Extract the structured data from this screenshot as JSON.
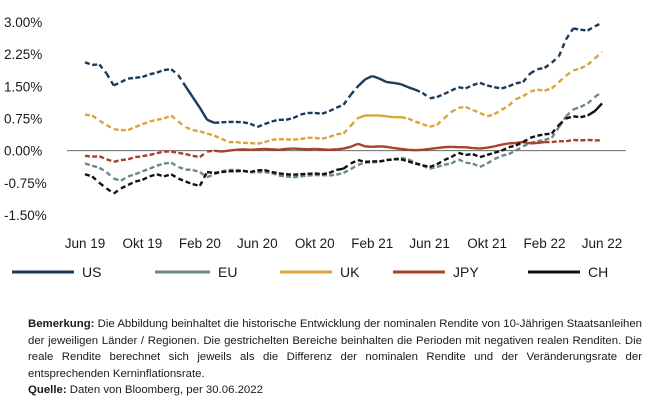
{
  "chart_data": {
    "type": "line",
    "title": "",
    "xlabel": "",
    "ylabel": "",
    "ylim": [
      -1.5,
      3.0
    ],
    "y_ticks": [
      "3.00%",
      "2.25%",
      "1.50%",
      "0.75%",
      "0.00%",
      "-0.75%",
      "-1.50%"
    ],
    "y_tick_values": [
      3.0,
      2.25,
      1.5,
      0.75,
      0.0,
      -0.75,
      -1.5
    ],
    "x_ticks": [
      "Jun 19",
      "Okt 19",
      "Feb 20",
      "Jun 20",
      "Okt 20",
      "Feb 21",
      "Jun 21",
      "Okt 21",
      "Feb 22",
      "Jun 22"
    ],
    "x_tick_values": [
      0,
      4,
      8,
      12,
      16,
      20,
      24,
      28,
      32,
      36
    ],
    "legend_position": "bottom",
    "grid": false,
    "zero_line": true,
    "dashed_region_note": "dashed segments = periods with negative real yields",
    "series": [
      {
        "name": "US",
        "color": "#1a3a5c",
        "x": [
          0,
          0.5,
          1,
          1.5,
          2,
          2.5,
          3,
          3.5,
          4,
          4.5,
          5,
          5.5,
          6,
          6.5,
          7,
          7.5,
          8,
          8.5,
          9,
          9.5,
          10,
          10.5,
          11,
          11.5,
          12,
          12.5,
          13,
          13.5,
          14,
          14.5,
          15,
          15.5,
          16,
          16.5,
          17,
          17.5,
          18,
          18.5,
          19,
          19.5,
          20,
          20.5,
          21,
          21.5,
          22,
          22.5,
          23,
          23.5,
          24,
          24.5,
          25,
          25.5,
          26,
          26.5,
          27,
          27.5,
          28,
          28.5,
          29,
          29.5,
          30,
          30.5,
          31,
          31.5,
          32,
          32.5,
          33,
          33.5,
          34,
          34.5,
          35,
          35.5,
          36
        ],
        "values": [
          2.06,
          2.0,
          2.01,
          1.8,
          1.52,
          1.6,
          1.68,
          1.7,
          1.72,
          1.78,
          1.82,
          1.88,
          1.9,
          1.76,
          1.5,
          1.25,
          1.0,
          0.72,
          0.65,
          0.66,
          0.67,
          0.67,
          0.66,
          0.63,
          0.55,
          0.62,
          0.68,
          0.72,
          0.72,
          0.76,
          0.84,
          0.88,
          0.88,
          0.86,
          0.92,
          1.0,
          1.07,
          1.3,
          1.5,
          1.66,
          1.74,
          1.68,
          1.6,
          1.58,
          1.55,
          1.48,
          1.42,
          1.35,
          1.22,
          1.25,
          1.32,
          1.4,
          1.48,
          1.45,
          1.53,
          1.58,
          1.52,
          1.48,
          1.45,
          1.5,
          1.57,
          1.6,
          1.8,
          1.9,
          1.93,
          2.05,
          2.2,
          2.6,
          2.85,
          2.82,
          2.8,
          2.9,
          2.98
        ]
      },
      {
        "name": "EU",
        "color": "#6e8a80",
        "x": [
          0,
          0.5,
          1,
          1.5,
          2,
          2.5,
          3,
          3.5,
          4,
          4.5,
          5,
          5.5,
          6,
          6.5,
          7,
          7.5,
          8,
          8.5,
          9,
          9.5,
          10,
          10.5,
          11,
          11.5,
          12,
          12.5,
          13,
          13.5,
          14,
          14.5,
          15,
          15.5,
          16,
          16.5,
          17,
          17.5,
          18,
          18.5,
          19,
          19.5,
          20,
          20.5,
          21,
          21.5,
          22,
          22.5,
          23,
          23.5,
          24,
          24.5,
          25,
          25.5,
          26,
          26.5,
          27,
          27.5,
          28,
          28.5,
          29,
          29.5,
          30,
          30.5,
          31,
          31.5,
          32,
          32.5,
          33,
          33.5,
          34,
          34.5,
          35,
          35.5,
          36
        ],
        "values": [
          -0.3,
          -0.35,
          -0.4,
          -0.5,
          -0.65,
          -0.7,
          -0.6,
          -0.55,
          -0.48,
          -0.42,
          -0.35,
          -0.3,
          -0.28,
          -0.38,
          -0.44,
          -0.45,
          -0.5,
          -0.62,
          -0.55,
          -0.48,
          -0.45,
          -0.45,
          -0.47,
          -0.5,
          -0.5,
          -0.5,
          -0.52,
          -0.58,
          -0.6,
          -0.62,
          -0.6,
          -0.58,
          -0.57,
          -0.57,
          -0.58,
          -0.56,
          -0.52,
          -0.43,
          -0.33,
          -0.28,
          -0.27,
          -0.26,
          -0.22,
          -0.2,
          -0.17,
          -0.2,
          -0.28,
          -0.35,
          -0.42,
          -0.38,
          -0.33,
          -0.3,
          -0.2,
          -0.28,
          -0.3,
          -0.38,
          -0.3,
          -0.2,
          -0.12,
          -0.08,
          0.0,
          0.1,
          0.18,
          0.22,
          0.25,
          0.3,
          0.55,
          0.8,
          0.96,
          1.02,
          1.1,
          1.25,
          1.37
        ]
      },
      {
        "name": "UK",
        "color": "#d9a43a",
        "x": [
          0,
          0.5,
          1,
          1.5,
          2,
          2.5,
          3,
          3.5,
          4,
          4.5,
          5,
          5.5,
          6,
          6.5,
          7,
          7.5,
          8,
          8.5,
          9,
          9.5,
          10,
          10.5,
          11,
          11.5,
          12,
          12.5,
          13,
          13.5,
          14,
          14.5,
          15,
          15.5,
          16,
          16.5,
          17,
          17.5,
          18,
          18.5,
          19,
          19.5,
          20,
          20.5,
          21,
          21.5,
          22,
          22.5,
          23,
          23.5,
          24,
          24.5,
          25,
          25.5,
          26,
          26.5,
          27,
          27.5,
          28,
          28.5,
          29,
          29.5,
          30,
          30.5,
          31,
          31.5,
          32,
          32.5,
          33,
          33.5,
          34,
          34.5,
          35,
          35.5,
          36
        ],
        "values": [
          0.84,
          0.82,
          0.7,
          0.6,
          0.5,
          0.48,
          0.48,
          0.55,
          0.62,
          0.68,
          0.72,
          0.75,
          0.82,
          0.68,
          0.55,
          0.48,
          0.45,
          0.4,
          0.35,
          0.28,
          0.2,
          0.2,
          0.18,
          0.18,
          0.16,
          0.2,
          0.25,
          0.27,
          0.26,
          0.26,
          0.27,
          0.3,
          0.3,
          0.28,
          0.32,
          0.38,
          0.4,
          0.58,
          0.76,
          0.82,
          0.82,
          0.82,
          0.8,
          0.78,
          0.78,
          0.75,
          0.68,
          0.62,
          0.56,
          0.6,
          0.75,
          0.9,
          1.0,
          1.02,
          0.95,
          0.88,
          0.8,
          0.85,
          0.95,
          1.05,
          1.2,
          1.27,
          1.38,
          1.42,
          1.4,
          1.45,
          1.6,
          1.75,
          1.87,
          1.92,
          2.0,
          2.15,
          2.3
        ]
      },
      {
        "name": "JPY",
        "color": "#a8402a",
        "x": [
          0,
          0.5,
          1,
          1.5,
          2,
          2.5,
          3,
          3.5,
          4,
          4.5,
          5,
          5.5,
          6,
          6.5,
          7,
          7.5,
          8,
          8.5,
          9,
          9.5,
          10,
          10.5,
          11,
          11.5,
          12,
          12.5,
          13,
          13.5,
          14,
          14.5,
          15,
          15.5,
          16,
          16.5,
          17,
          17.5,
          18,
          18.5,
          19,
          19.5,
          20,
          20.5,
          21,
          21.5,
          22,
          22.5,
          23,
          23.5,
          24,
          24.5,
          25,
          25.5,
          26,
          26.5,
          27,
          27.5,
          28,
          28.5,
          29,
          29.5,
          30,
          30.5,
          31,
          31.5,
          32,
          32.5,
          33,
          33.5,
          34,
          34.5,
          35,
          35.5,
          36
        ],
        "values": [
          -0.12,
          -0.14,
          -0.13,
          -0.2,
          -0.26,
          -0.22,
          -0.2,
          -0.15,
          -0.13,
          -0.1,
          -0.06,
          -0.02,
          -0.02,
          -0.05,
          -0.08,
          -0.12,
          -0.15,
          -0.02,
          0.0,
          -0.02,
          0.0,
          0.02,
          0.03,
          0.02,
          0.03,
          0.04,
          0.03,
          0.02,
          0.04,
          0.05,
          0.04,
          0.03,
          0.04,
          0.03,
          0.02,
          0.03,
          0.05,
          0.09,
          0.16,
          0.1,
          0.09,
          0.1,
          0.09,
          0.06,
          0.04,
          0.02,
          0.01,
          0.02,
          0.04,
          0.06,
          0.08,
          0.09,
          0.08,
          0.08,
          0.06,
          0.05,
          0.07,
          0.1,
          0.14,
          0.17,
          0.18,
          0.2,
          0.17,
          0.18,
          0.2,
          0.2,
          0.22,
          0.22,
          0.25,
          0.24,
          0.25,
          0.24,
          0.24
        ]
      },
      {
        "name": "CH",
        "color": "#111111",
        "x": [
          0,
          0.5,
          1,
          1.5,
          2,
          2.5,
          3,
          3.5,
          4,
          4.5,
          5,
          5.5,
          6,
          6.5,
          7,
          7.5,
          8,
          8.5,
          9,
          9.5,
          10,
          10.5,
          11,
          11.5,
          12,
          12.5,
          13,
          13.5,
          14,
          14.5,
          15,
          15.5,
          16,
          16.5,
          17,
          17.5,
          18,
          18.5,
          19,
          19.5,
          20,
          20.5,
          21,
          21.5,
          22,
          22.5,
          23,
          23.5,
          24,
          24.5,
          25,
          25.5,
          26,
          26.5,
          27,
          27.5,
          28,
          28.5,
          29,
          29.5,
          30,
          30.5,
          31,
          31.5,
          32,
          32.5,
          33,
          33.5,
          34,
          34.5,
          35,
          35.5,
          36
        ],
        "values": [
          -0.55,
          -0.6,
          -0.75,
          -0.88,
          -1.0,
          -0.88,
          -0.8,
          -0.72,
          -0.68,
          -0.6,
          -0.55,
          -0.6,
          -0.55,
          -0.65,
          -0.72,
          -0.78,
          -0.82,
          -0.5,
          -0.52,
          -0.5,
          -0.48,
          -0.48,
          -0.47,
          -0.5,
          -0.46,
          -0.45,
          -0.5,
          -0.53,
          -0.55,
          -0.56,
          -0.55,
          -0.54,
          -0.53,
          -0.55,
          -0.52,
          -0.45,
          -0.42,
          -0.3,
          -0.22,
          -0.26,
          -0.25,
          -0.25,
          -0.22,
          -0.2,
          -0.2,
          -0.25,
          -0.3,
          -0.34,
          -0.38,
          -0.32,
          -0.22,
          -0.15,
          -0.05,
          -0.1,
          -0.08,
          -0.15,
          -0.1,
          -0.05,
          0.0,
          0.08,
          0.12,
          0.2,
          0.3,
          0.35,
          0.38,
          0.4,
          0.6,
          0.75,
          0.8,
          0.78,
          0.82,
          0.92,
          1.1
        ]
      }
    ],
    "dashed_ranges": {
      "US": [
        [
          0,
          7
        ],
        [
          9,
          19
        ],
        [
          23,
          36
        ]
      ],
      "EU": [
        [
          0,
          36
        ]
      ],
      "UK": [
        [
          0,
          19
        ],
        [
          22,
          36
        ]
      ],
      "JPY": [
        [
          0,
          9
        ],
        [
          32,
          36
        ]
      ],
      "CH": [
        [
          0,
          17.5
        ],
        [
          18,
          35
        ]
      ]
    }
  },
  "notes": {
    "remark_label": "Bemerkung:",
    "remark_text": " Die Abbildung beinhaltet die historische Entwicklung der nominalen Rendite von 10-Jährigen Staatsanleihen der jeweiligen Länder / Regionen. Die gestrichelten Bereiche beinhalten die Perioden mit negativen realen Renditen. Die reale Rendite berechnet sich jeweils als die Differenz der nominalen Rendite und der Veränderungsrate der entsprechenden Kerninflationsrate.",
    "source_label": "Quelle:",
    "source_text": " Daten von Bloomberg, per 30.06.2022"
  }
}
